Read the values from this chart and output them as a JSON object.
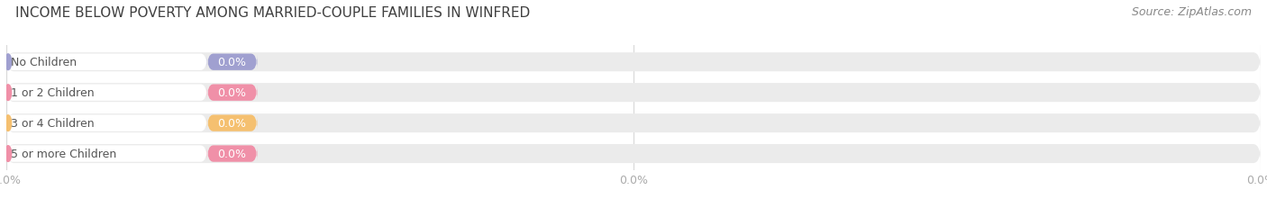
{
  "title": "INCOME BELOW POVERTY AMONG MARRIED-COUPLE FAMILIES IN WINFRED",
  "source": "Source: ZipAtlas.com",
  "categories": [
    "No Children",
    "1 or 2 Children",
    "3 or 4 Children",
    "5 or more Children"
  ],
  "values": [
    0.0,
    0.0,
    0.0,
    0.0
  ],
  "bar_colors": [
    "#a0a0d0",
    "#f090a8",
    "#f5c070",
    "#f090a8"
  ],
  "bar_bg_color": "#ebebeb",
  "bar_outer_bg": "#e0e0e0",
  "background_color": "#ffffff",
  "title_fontsize": 11,
  "source_fontsize": 9,
  "tick_fontsize": 9,
  "label_fontsize": 9,
  "value_fontsize": 9,
  "figsize": [
    14.06,
    2.32
  ],
  "dpi": 100,
  "bar_height": 0.62,
  "label_color": "#555555",
  "value_label_color": "#ffffff",
  "tick_color": "#aaaaaa",
  "grid_color": "#d8d8d8"
}
